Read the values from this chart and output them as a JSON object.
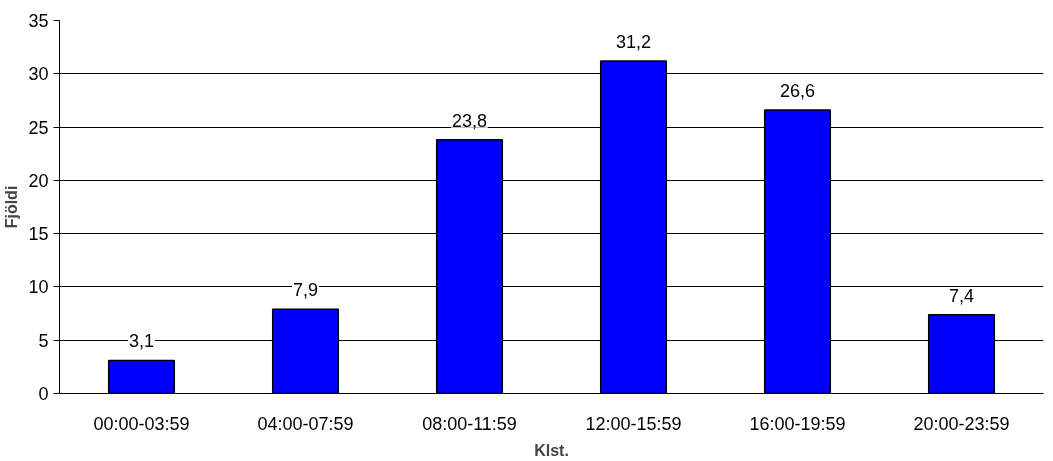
{
  "chart_data": {
    "type": "bar",
    "xlabel": "Klst.",
    "ylabel": "Fjöldi",
    "categories": [
      "00:00-03:59",
      "04:00-07:59",
      "08:00-11:59",
      "12:00-15:59",
      "16:00-19:59",
      "20:00-23:59"
    ],
    "values": [
      3.1,
      7.9,
      23.8,
      31.2,
      26.6,
      7.4
    ],
    "value_labels": [
      "3,1",
      "7,9",
      "23,8",
      "31,2",
      "26,6",
      "7,4"
    ],
    "color": "#0000ff",
    "ylim": [
      0,
      35
    ],
    "yticks": [
      0,
      5,
      10,
      15,
      20,
      25,
      30,
      35
    ],
    "grid": "y"
  }
}
